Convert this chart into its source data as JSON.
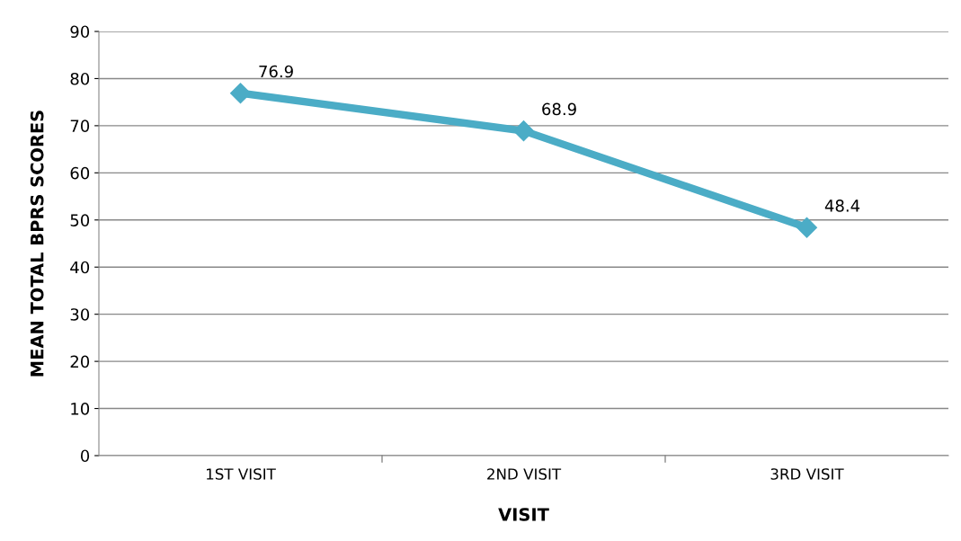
{
  "chart_data": {
    "type": "line",
    "xlabel": "VISIT",
    "ylabel": "MEAN TOTAL BPRS SCORES",
    "categories": [
      "1ST VISIT",
      "2ND VISIT",
      "3RD VISIT"
    ],
    "series": [
      {
        "color": "#4bacc6",
        "values": [
          76.9,
          68.9,
          48.4
        ]
      }
    ],
    "ylim": [
      0,
      90
    ],
    "yticks": [
      0,
      10,
      20,
      30,
      40,
      50,
      60,
      70,
      80,
      90
    ],
    "grid": "y",
    "marker": "diamond",
    "line_style": "solid",
    "data_labels": true,
    "legend": false
  }
}
